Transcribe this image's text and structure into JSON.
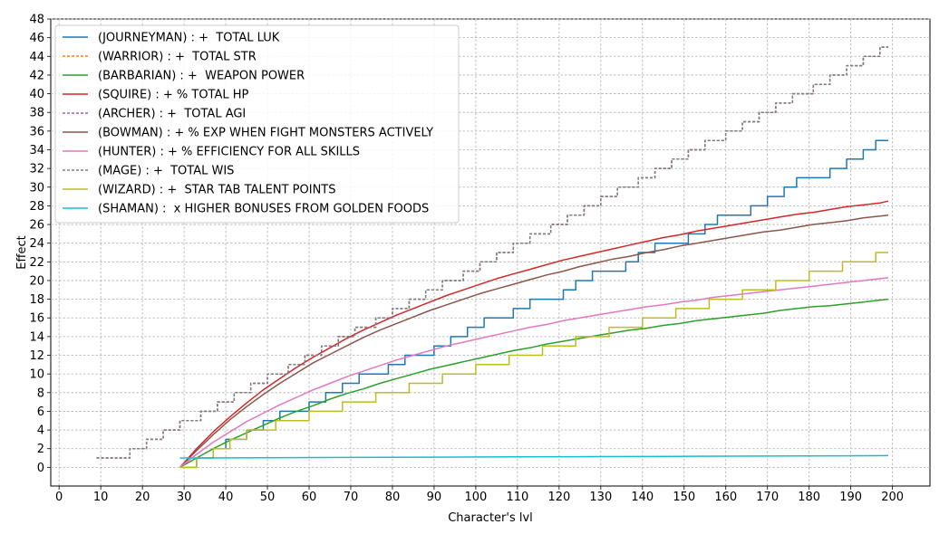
{
  "chart_data": {
    "type": "line",
    "title": "",
    "xlabel": "Character's lvl",
    "ylabel": "Effect",
    "xlim": [
      -2,
      209
    ],
    "ylim": [
      -2,
      48
    ],
    "xticks": [
      0,
      10,
      20,
      30,
      40,
      50,
      60,
      70,
      80,
      90,
      100,
      110,
      120,
      130,
      140,
      150,
      160,
      170,
      180,
      190,
      200
    ],
    "yticks": [
      0,
      2,
      4,
      6,
      8,
      10,
      12,
      14,
      16,
      18,
      20,
      22,
      24,
      26,
      28,
      30,
      32,
      34,
      36,
      38,
      40,
      42,
      44,
      46,
      48
    ],
    "grid": true,
    "legend_position": "top-left",
    "series": [
      {
        "name": "(JOURNEYMAN) : +  TOTAL LUK",
        "color": "#1f77b4",
        "dash": "solid",
        "step": true,
        "x": [
          29,
          33,
          37,
          40,
          45,
          49,
          53,
          57,
          60,
          64,
          68,
          72,
          75,
          79,
          83,
          87,
          90,
          94,
          98,
          102,
          106,
          109,
          113,
          117,
          121,
          124,
          128,
          132,
          136,
          139,
          143,
          147,
          151,
          155,
          158,
          162,
          166,
          170,
          174,
          177,
          181,
          185,
          189,
          193,
          196,
          199
        ],
        "y": [
          0,
          1,
          2,
          3,
          4,
          5,
          6,
          6,
          7,
          8,
          9,
          10,
          10,
          11,
          12,
          12,
          13,
          14,
          15,
          16,
          16,
          17,
          18,
          18,
          19,
          20,
          21,
          21,
          22,
          23,
          24,
          24,
          25,
          26,
          27,
          27,
          28,
          29,
          30,
          31,
          31,
          32,
          33,
          34,
          35,
          35
        ]
      },
      {
        "name": "(WARRIOR) : +  TOTAL STR",
        "color": "#ff7f0e",
        "dash": "dashed",
        "step": true,
        "x": [
          9,
          12,
          17,
          21,
          25,
          29,
          34,
          38,
          42,
          46,
          50,
          55,
          59,
          63,
          67,
          71,
          76,
          80,
          84,
          88,
          92,
          97,
          101,
          105,
          109,
          113,
          118,
          122,
          126,
          130,
          134,
          139,
          143,
          147,
          151,
          155,
          160,
          164,
          168,
          172,
          176,
          181,
          185,
          189,
          193,
          197,
          199
        ],
        "y": [
          1,
          1,
          2,
          3,
          4,
          5,
          6,
          7,
          8,
          9,
          10,
          11,
          12,
          13,
          14,
          15,
          16,
          17,
          18,
          19,
          20,
          21,
          22,
          23,
          24,
          25,
          26,
          27,
          28,
          29,
          30,
          31,
          32,
          33,
          34,
          35,
          36,
          37,
          38,
          39,
          40,
          41,
          42,
          43,
          44,
          45,
          45
        ]
      },
      {
        "name": "(BARBARIAN) : +  WEAPON POWER",
        "color": "#2ca02c",
        "dash": "solid",
        "step": false,
        "x": [
          29,
          33,
          37,
          41,
          45,
          49,
          53,
          57,
          61,
          65,
          69,
          73,
          77,
          81,
          85,
          89,
          93,
          97,
          101,
          105,
          109,
          113,
          117,
          121,
          125,
          129,
          133,
          137,
          141,
          145,
          149,
          153,
          157,
          161,
          165,
          169,
          173,
          177,
          181,
          185,
          189,
          193,
          197,
          199
        ],
        "y": [
          0,
          1.0,
          2.0,
          2.9,
          3.7,
          4.5,
          5.3,
          6.0,
          6.6,
          7.3,
          7.9,
          8.4,
          9.0,
          9.5,
          10.0,
          10.5,
          10.9,
          11.3,
          11.7,
          12.1,
          12.5,
          12.8,
          13.2,
          13.5,
          13.8,
          14.1,
          14.4,
          14.7,
          14.9,
          15.2,
          15.4,
          15.7,
          15.9,
          16.1,
          16.3,
          16.5,
          16.8,
          17.0,
          17.2,
          17.3,
          17.5,
          17.7,
          17.9,
          18.0
        ]
      },
      {
        "name": "(SQUIRE) : + % TOTAL HP",
        "color": "#d62728",
        "dash": "solid",
        "step": false,
        "x": [
          29,
          33,
          37,
          41,
          45,
          49,
          53,
          57,
          61,
          65,
          69,
          73,
          77,
          81,
          85,
          89,
          93,
          97,
          101,
          105,
          109,
          113,
          117,
          121,
          125,
          129,
          133,
          137,
          141,
          145,
          149,
          153,
          157,
          161,
          165,
          169,
          173,
          177,
          181,
          185,
          189,
          193,
          197,
          199
        ],
        "y": [
          0,
          2.0,
          3.8,
          5.4,
          6.9,
          8.3,
          9.5,
          10.7,
          11.8,
          12.8,
          13.8,
          14.7,
          15.5,
          16.3,
          17.0,
          17.7,
          18.4,
          19.0,
          19.6,
          20.2,
          20.7,
          21.2,
          21.7,
          22.2,
          22.6,
          23.0,
          23.4,
          23.8,
          24.2,
          24.6,
          24.9,
          25.3,
          25.6,
          25.9,
          26.2,
          26.5,
          26.8,
          27.1,
          27.3,
          27.6,
          27.9,
          28.1,
          28.3,
          28.5
        ]
      },
      {
        "name": "(ARCHER) : +  TOTAL AGI",
        "color": "#9467bd",
        "dash": "dashed",
        "step": true,
        "x": [
          9,
          12,
          17,
          21,
          25,
          29,
          34,
          38,
          42,
          46,
          50,
          55,
          59,
          63,
          67,
          71,
          76,
          80,
          84,
          88,
          92,
          97,
          101,
          105,
          109,
          113,
          118,
          122,
          126,
          130,
          134,
          139,
          143,
          147,
          151,
          155,
          160,
          164,
          168,
          172,
          176,
          181,
          185,
          189,
          193,
          197,
          199
        ],
        "y": [
          1,
          1,
          2,
          3,
          4,
          5,
          6,
          7,
          8,
          9,
          10,
          11,
          12,
          13,
          14,
          15,
          16,
          17,
          18,
          19,
          20,
          21,
          22,
          23,
          24,
          25,
          26,
          27,
          28,
          29,
          30,
          31,
          32,
          33,
          34,
          35,
          36,
          37,
          38,
          39,
          40,
          41,
          42,
          43,
          44,
          45,
          45
        ]
      },
      {
        "name": "(BOWMAN) : + % EXP WHEN FIGHT MONSTERS ACTIVELY",
        "color": "#8c564b",
        "dash": "solid",
        "step": false,
        "x": [
          29,
          33,
          37,
          41,
          45,
          49,
          53,
          57,
          61,
          65,
          69,
          73,
          77,
          81,
          85,
          89,
          93,
          97,
          101,
          105,
          109,
          113,
          117,
          121,
          125,
          129,
          133,
          137,
          141,
          145,
          149,
          153,
          157,
          161,
          165,
          169,
          173,
          177,
          181,
          185,
          189,
          193,
          197,
          199
        ],
        "y": [
          0,
          1.8,
          3.5,
          5.1,
          6.5,
          7.8,
          9.0,
          10.1,
          11.2,
          12.1,
          13.0,
          13.9,
          14.7,
          15.4,
          16.1,
          16.8,
          17.4,
          18.0,
          18.6,
          19.1,
          19.6,
          20.1,
          20.6,
          21.0,
          21.5,
          21.9,
          22.3,
          22.6,
          23.0,
          23.3,
          23.7,
          24.0,
          24.3,
          24.6,
          24.9,
          25.2,
          25.4,
          25.7,
          26.0,
          26.2,
          26.4,
          26.7,
          26.9,
          27.0
        ]
      },
      {
        "name": "(HUNTER) : + % EFFICIENCY FOR ALL SKILLS",
        "color": "#e377c2",
        "dash": "solid",
        "step": false,
        "x": [
          29,
          33,
          37,
          41,
          45,
          49,
          53,
          57,
          61,
          65,
          69,
          73,
          77,
          81,
          85,
          89,
          93,
          97,
          101,
          105,
          109,
          113,
          117,
          121,
          125,
          129,
          133,
          137,
          141,
          145,
          149,
          153,
          157,
          161,
          165,
          169,
          173,
          177,
          181,
          185,
          189,
          193,
          197,
          199
        ],
        "y": [
          0,
          1.4,
          2.7,
          3.8,
          4.9,
          5.8,
          6.7,
          7.5,
          8.3,
          9.0,
          9.7,
          10.3,
          10.9,
          11.5,
          12.0,
          12.5,
          13.0,
          13.4,
          13.8,
          14.2,
          14.6,
          15.0,
          15.3,
          15.7,
          16.0,
          16.3,
          16.6,
          16.9,
          17.2,
          17.4,
          17.7,
          17.9,
          18.2,
          18.4,
          18.6,
          18.8,
          19.0,
          19.2,
          19.4,
          19.6,
          19.8,
          20.0,
          20.2,
          20.3
        ]
      },
      {
        "name": "(MAGE) : +  TOTAL WIS",
        "color": "#7f7f7f",
        "dash": "dashed",
        "step": true,
        "x": [
          9,
          12,
          17,
          21,
          25,
          29,
          34,
          38,
          42,
          46,
          50,
          55,
          59,
          63,
          67,
          71,
          76,
          80,
          84,
          88,
          92,
          97,
          101,
          105,
          109,
          113,
          118,
          122,
          126,
          130,
          134,
          139,
          143,
          147,
          151,
          155,
          160,
          164,
          168,
          172,
          176,
          181,
          185,
          189,
          193,
          197,
          199
        ],
        "y": [
          1,
          1,
          2,
          3,
          4,
          5,
          6,
          7,
          8,
          9,
          10,
          11,
          12,
          13,
          14,
          15,
          16,
          17,
          18,
          19,
          20,
          21,
          22,
          23,
          24,
          25,
          26,
          27,
          28,
          29,
          30,
          31,
          32,
          33,
          34,
          35,
          36,
          37,
          38,
          39,
          40,
          41,
          42,
          43,
          44,
          45,
          45
        ]
      },
      {
        "name": "(WIZARD) : +  STAR TAB TALENT POINTS",
        "color": "#bcbd22",
        "dash": "solid",
        "step": true,
        "x": [
          29,
          33,
          37,
          41,
          45,
          52,
          60,
          68,
          76,
          84,
          92,
          100,
          108,
          116,
          124,
          132,
          140,
          148,
          156,
          164,
          172,
          180,
          188,
          196,
          199
        ],
        "y": [
          0,
          1,
          2,
          3,
          4,
          5,
          6,
          7,
          8,
          9,
          10,
          11,
          12,
          13,
          14,
          15,
          16,
          17,
          18,
          19,
          20,
          21,
          22,
          23,
          23
        ]
      },
      {
        "name": "(SHAMAN) :  x HIGHER BONUSES FROM GOLDEN FOODS",
        "color": "#17becf",
        "dash": "solid",
        "step": false,
        "x": [
          29,
          49,
          69,
          89,
          109,
          129,
          149,
          169,
          189,
          199
        ],
        "y": [
          1.0,
          1.03,
          1.06,
          1.09,
          1.12,
          1.15,
          1.18,
          1.21,
          1.24,
          1.26
        ]
      }
    ]
  }
}
